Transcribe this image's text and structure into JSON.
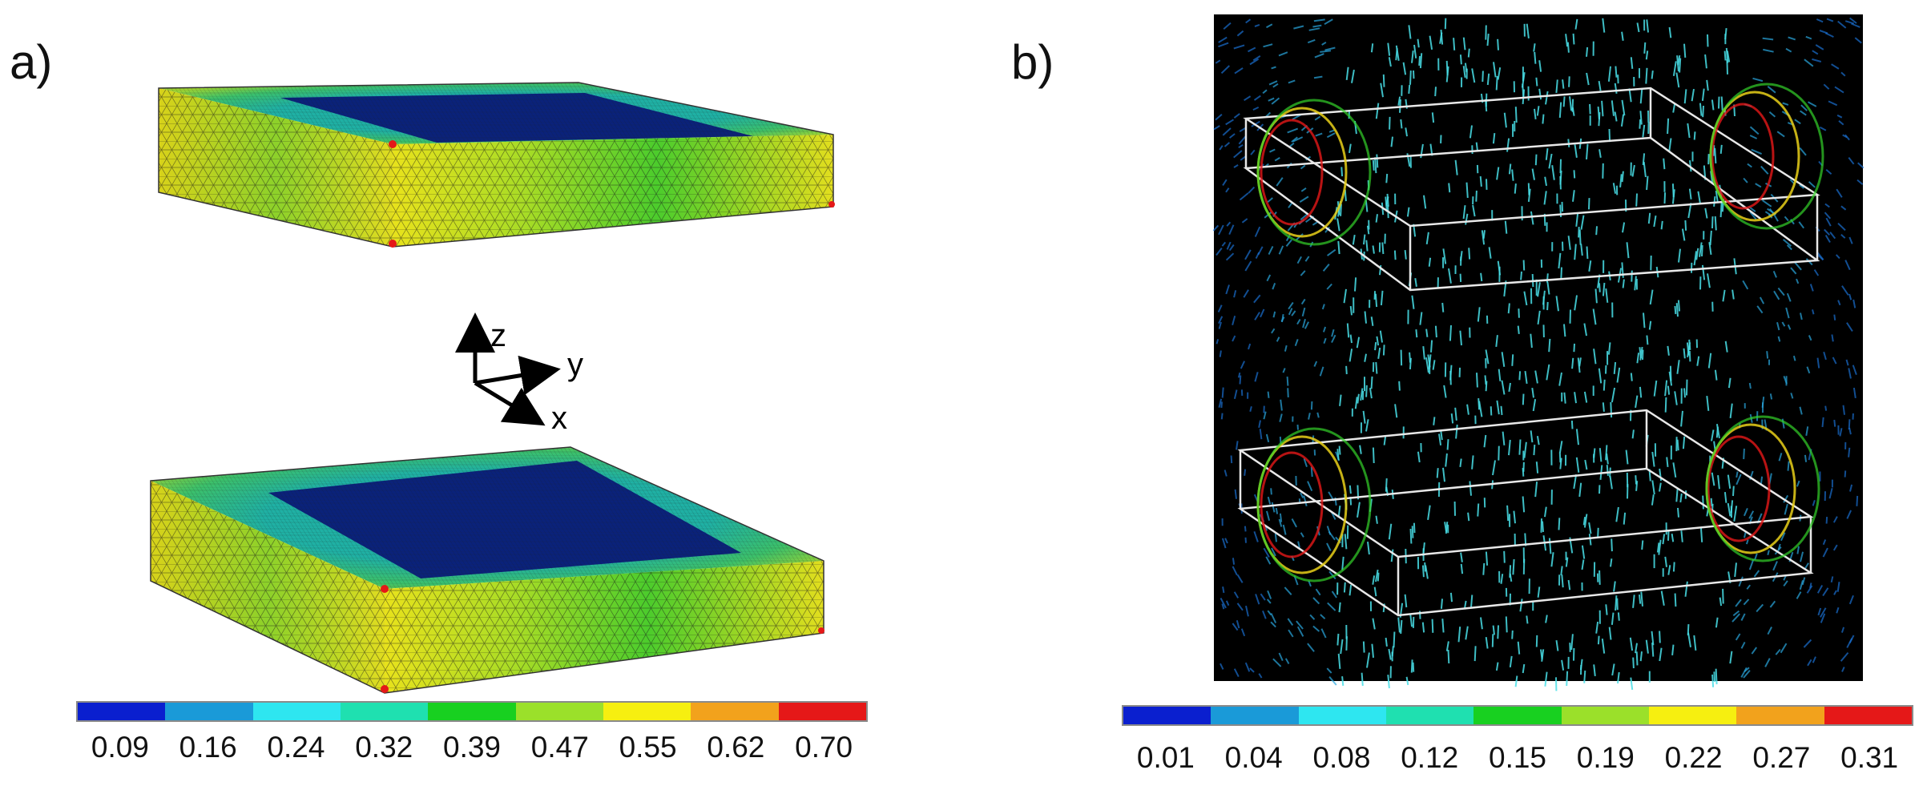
{
  "panels": {
    "a": {
      "label": "a)",
      "axes": {
        "z": "z",
        "y": "y",
        "x": "x"
      },
      "colorbar": {
        "colors": [
          "#0a1fcf",
          "#1a9ad8",
          "#2ee6f0",
          "#1fe0b0",
          "#18d020",
          "#9be02a",
          "#f6ef10",
          "#f2a21c",
          "#e51818"
        ],
        "ticks": [
          "0.09",
          "0.16",
          "0.24",
          "0.32",
          "0.39",
          "0.47",
          "0.55",
          "0.62",
          "0.70"
        ]
      }
    },
    "b": {
      "label": "b)",
      "colorbar": {
        "colors": [
          "#0a1fcf",
          "#1a9ad8",
          "#2ee6f0",
          "#1fe0b0",
          "#18d020",
          "#9be02a",
          "#f6ef10",
          "#f2a21c",
          "#e51818"
        ],
        "ticks": [
          "0.01",
          "0.04",
          "0.08",
          "0.12",
          "0.15",
          "0.19",
          "0.22",
          "0.27",
          "0.31"
        ]
      }
    }
  }
}
